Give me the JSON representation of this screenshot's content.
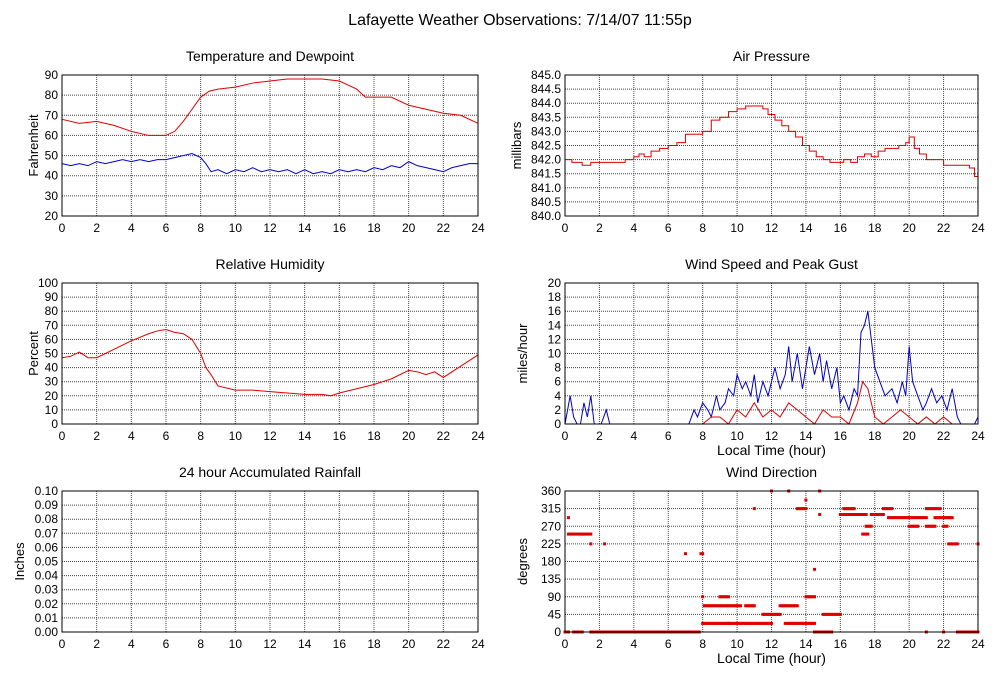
{
  "page": {
    "title": "Lafayette Weather Observations: 7/14/07 11:55p",
    "colors": {
      "red": "#dd0000",
      "blue": "#0000cc",
      "grid": "#444444",
      "frame": "#000000"
    }
  },
  "chart_data": [
    {
      "id": "temp",
      "type": "line",
      "title": "Temperature and Dewpoint",
      "xlabel": "",
      "ylabel": "Fahrenheit",
      "xlim": [
        0,
        24
      ],
      "ylim": [
        20,
        90
      ],
      "xticks": [
        0,
        2,
        4,
        6,
        8,
        10,
        12,
        14,
        16,
        18,
        20,
        22,
        24
      ],
      "yticks": [
        20,
        30,
        40,
        50,
        60,
        70,
        80,
        90
      ],
      "grid": true,
      "series": [
        {
          "color": "#dd0000",
          "step": false,
          "x": [
            0,
            1,
            2,
            3,
            4,
            5,
            5.5,
            6,
            6.5,
            7,
            7.5,
            8,
            8.5,
            9,
            10,
            11,
            12,
            13,
            14,
            15,
            16,
            16.5,
            17,
            17.5,
            18,
            19,
            20,
            21,
            22,
            23,
            24
          ],
          "y": [
            68,
            66,
            67,
            65,
            62,
            60,
            60,
            60,
            62,
            67,
            73,
            79,
            82,
            83,
            84,
            86,
            87,
            88,
            88,
            88,
            87,
            85,
            83,
            79,
            79,
            79,
            75,
            73,
            71,
            70,
            66
          ]
        },
        {
          "color": "#0000cc",
          "step": false,
          "x": [
            0,
            0.5,
            1,
            1.5,
            2,
            2.5,
            3,
            3.5,
            4,
            4.5,
            5,
            5.5,
            6,
            6.5,
            7,
            7.5,
            8,
            8.3,
            8.6,
            9,
            9.5,
            10,
            10.5,
            11,
            11.5,
            12,
            12.5,
            13,
            13.5,
            14,
            14.5,
            15,
            15.5,
            16,
            16.5,
            17,
            17.5,
            18,
            18.5,
            19,
            19.5,
            20,
            20.5,
            21,
            21.5,
            22,
            22.5,
            23,
            23.5,
            24
          ],
          "y": [
            46,
            45,
            46,
            45,
            47,
            46,
            47,
            48,
            47,
            48,
            47,
            48,
            48,
            49,
            50,
            51,
            49,
            46,
            42,
            43,
            41,
            43,
            42,
            44,
            42,
            43,
            42,
            43,
            41,
            43,
            41,
            42,
            41,
            43,
            42,
            43,
            42,
            44,
            43,
            45,
            44,
            47,
            45,
            44,
            43,
            42,
            44,
            45,
            46,
            46
          ]
        }
      ]
    },
    {
      "id": "pressure",
      "type": "line",
      "title": "Air Pressure",
      "xlabel": "",
      "ylabel": "millibars",
      "xlim": [
        0,
        24
      ],
      "ylim": [
        840.0,
        845.0
      ],
      "xticks": [
        0,
        2,
        4,
        6,
        8,
        10,
        12,
        14,
        16,
        18,
        20,
        22,
        24
      ],
      "yticks": [
        "840.0",
        "840.5",
        "841.0",
        "841.5",
        "842.0",
        "842.5",
        "843.0",
        "843.5",
        "844.0",
        "844.5",
        "845.0"
      ],
      "grid": true,
      "series": [
        {
          "color": "#dd0000",
          "step": true,
          "x": [
            0,
            0.4,
            1,
            1.5,
            2,
            2.5,
            3,
            3.5,
            4,
            4.3,
            4.6,
            5,
            5.5,
            6,
            6.5,
            7,
            7.5,
            8,
            8.5,
            9,
            9.5,
            10,
            10.5,
            11,
            11.5,
            11.8,
            12.2,
            12.6,
            13,
            13.4,
            13.8,
            14.2,
            14.6,
            15,
            15.4,
            15.8,
            16.2,
            16.6,
            17,
            17.4,
            17.8,
            18.2,
            18.6,
            19,
            19.4,
            19.8,
            20,
            20.3,
            20.6,
            21,
            21.5,
            22,
            22.5,
            23,
            23.5,
            23.8,
            24
          ],
          "y": [
            842.0,
            841.9,
            841.8,
            841.9,
            841.9,
            841.9,
            841.9,
            842.0,
            842.1,
            842.2,
            842.1,
            842.3,
            842.4,
            842.5,
            842.6,
            842.9,
            842.9,
            843.0,
            843.4,
            843.5,
            843.7,
            843.8,
            843.9,
            843.9,
            843.8,
            843.6,
            843.4,
            843.2,
            843.0,
            842.8,
            842.5,
            842.3,
            842.1,
            842.0,
            841.9,
            841.9,
            842.0,
            841.9,
            842.1,
            842.2,
            842.1,
            842.3,
            842.4,
            842.4,
            842.5,
            842.6,
            842.8,
            842.4,
            842.2,
            842.0,
            842.0,
            841.8,
            841.8,
            841.8,
            841.7,
            841.4,
            841.4
          ]
        }
      ]
    },
    {
      "id": "humidity",
      "type": "line",
      "title": "Relative Humidity",
      "xlabel": "",
      "ylabel": "Percent",
      "xlim": [
        0,
        24
      ],
      "ylim": [
        0,
        100
      ],
      "xticks": [
        0,
        2,
        4,
        6,
        8,
        10,
        12,
        14,
        16,
        18,
        20,
        22,
        24
      ],
      "yticks": [
        0,
        10,
        20,
        30,
        40,
        50,
        60,
        70,
        80,
        90,
        100
      ],
      "grid": true,
      "series": [
        {
          "color": "#dd0000",
          "step": false,
          "x": [
            0,
            0.5,
            1,
            1.5,
            2,
            3,
            4,
            5,
            5.5,
            6,
            6.5,
            7,
            7.5,
            8,
            8.3,
            8.6,
            9,
            10,
            11,
            12,
            13,
            14,
            15,
            15.5,
            16,
            17,
            18,
            19,
            20,
            20.5,
            21,
            21.5,
            22,
            23,
            24
          ],
          "y": [
            47,
            48,
            51,
            47,
            47,
            53,
            59,
            64,
            66,
            67,
            65,
            64,
            60,
            50,
            40,
            35,
            27,
            24,
            24,
            23,
            22,
            21,
            21,
            20,
            22,
            25,
            28,
            32,
            38,
            37,
            35,
            37,
            33,
            41,
            49
          ]
        }
      ]
    },
    {
      "id": "wind",
      "type": "line",
      "title": "Wind Speed and Peak Gust",
      "xlabel": "Local Time (hour)",
      "ylabel": "miles/hour",
      "xlim": [
        0,
        24
      ],
      "ylim": [
        0,
        20
      ],
      "xticks": [
        0,
        2,
        4,
        6,
        8,
        10,
        12,
        14,
        16,
        18,
        20,
        22,
        24
      ],
      "yticks": [
        0,
        2,
        4,
        6,
        8,
        10,
        12,
        14,
        16,
        18,
        20
      ],
      "grid": true,
      "series": [
        {
          "color": "#0000cc",
          "step": false,
          "x": [
            0,
            0.3,
            0.5,
            0.7,
            0.9,
            1.1,
            1.3,
            1.5,
            1.7,
            1.9,
            2.1,
            2.4,
            2.6,
            7.2,
            7.5,
            7.7,
            8,
            8.3,
            8.5,
            8.8,
            9,
            9.3,
            9.5,
            9.8,
            10,
            10.3,
            10.5,
            10.8,
            11,
            11.2,
            11.5,
            11.8,
            12,
            12.2,
            12.5,
            12.8,
            13,
            13.2,
            13.5,
            13.8,
            14,
            14.2,
            14.5,
            14.8,
            15,
            15.2,
            15.5,
            15.8,
            16,
            16.2,
            16.5,
            16.8,
            17,
            17.2,
            17.4,
            17.6,
            17.8,
            18,
            18.3,
            18.6,
            19,
            19.3,
            19.6,
            19.8,
            20,
            20.2,
            20.5,
            20.8,
            21,
            21.3,
            21.6,
            21.9,
            22.2,
            22.5,
            22.8,
            23,
            23.8,
            24
          ],
          "y": [
            0,
            4,
            1,
            0,
            0,
            3,
            1,
            4,
            0,
            0,
            0,
            2,
            0,
            0,
            2,
            1,
            3,
            2,
            1,
            4,
            2,
            3,
            5,
            4,
            7,
            5,
            6,
            4,
            7,
            3,
            6,
            4,
            6,
            8,
            5,
            7,
            11,
            6,
            10,
            5,
            8,
            11,
            7,
            10,
            6,
            9,
            5,
            8,
            3,
            4,
            2,
            5,
            4,
            13,
            14,
            16,
            12,
            8,
            6,
            4,
            5,
            3,
            6,
            4,
            11,
            6,
            4,
            2,
            3,
            5,
            3,
            4,
            2,
            5,
            1,
            0,
            0,
            1
          ]
        },
        {
          "color": "#dd0000",
          "step": false,
          "x": [
            0,
            8,
            8.5,
            9,
            9.5,
            10,
            10.5,
            11,
            11.5,
            12,
            12.5,
            13,
            13.5,
            14,
            14.5,
            15,
            15.5,
            16,
            16.5,
            17,
            17.3,
            17.6,
            18,
            18.5,
            19,
            19.5,
            20,
            20.5,
            21,
            21.5,
            22,
            22.5,
            23,
            24
          ],
          "y": [
            0,
            0,
            1,
            1,
            0,
            2,
            1,
            3,
            1,
            2,
            1,
            3,
            2,
            1,
            0,
            2,
            1,
            1,
            0,
            3,
            6,
            5,
            1,
            0,
            1,
            2,
            1,
            0,
            1,
            0,
            1,
            0,
            0,
            0
          ]
        }
      ]
    },
    {
      "id": "rain",
      "type": "line",
      "title": "24 hour Accumulated Rainfall",
      "xlabel": "",
      "ylabel": "Inches",
      "xlim": [
        0,
        24
      ],
      "ylim": [
        0.0,
        0.1
      ],
      "xticks": [
        0,
        2,
        4,
        6,
        8,
        10,
        12,
        14,
        16,
        18,
        20,
        22,
        24
      ],
      "yticks": [
        "0.00",
        "0.01",
        "0.02",
        "0.03",
        "0.04",
        "0.05",
        "0.06",
        "0.07",
        "0.08",
        "0.09",
        "0.10"
      ],
      "grid": true,
      "series": [
        {
          "color": "#dd0000",
          "step": false,
          "x": [
            0,
            24
          ],
          "y": [
            0,
            0
          ]
        }
      ]
    },
    {
      "id": "direction",
      "type": "scatter",
      "title": "Wind Direction",
      "xlabel": "Local Time (hour)",
      "ylabel": "degrees",
      "xlim": [
        0,
        24
      ],
      "ylim": [
        0,
        360
      ],
      "xticks": [
        0,
        2,
        4,
        6,
        8,
        10,
        12,
        14,
        16,
        18,
        20,
        22,
        24
      ],
      "yticks": [
        0,
        45,
        90,
        135,
        180,
        225,
        270,
        315,
        360
      ],
      "grid": true,
      "series": [
        {
          "color": "#dd0000",
          "runs": [
            [
              0.0,
              0.2,
              0
            ],
            [
              0.2,
              0.2,
              292
            ],
            [
              0.2,
              1.0,
              250
            ],
            [
              0.5,
              1.0,
              0
            ],
            [
              1.0,
              1.5,
              250
            ],
            [
              1.5,
              1.5,
              225
            ],
            [
              2.3,
              2.3,
              225
            ],
            [
              1.5,
              7.8,
              0
            ],
            [
              7.0,
              7.0,
              200
            ],
            [
              7.9,
              8.0,
              200
            ],
            [
              8.0,
              8.0,
              90
            ],
            [
              8.1,
              10.2,
              67
            ],
            [
              8.0,
              9.5,
              22
            ],
            [
              9.0,
              9.5,
              90
            ],
            [
              9.5,
              12.0,
              22
            ],
            [
              10.5,
              11.0,
              67
            ],
            [
              11.5,
              12.5,
              45
            ],
            [
              12.0,
              12.0,
              360
            ],
            [
              11.0,
              11.0,
              315
            ],
            [
              12.5,
              13.5,
              67
            ],
            [
              13.0,
              13.0,
              360
            ],
            [
              13.5,
              14.0,
              315
            ],
            [
              14.0,
              14.0,
              337
            ],
            [
              12.8,
              14.5,
              22
            ],
            [
              14.0,
              14.5,
              90
            ],
            [
              14.5,
              14.5,
              160
            ],
            [
              14.8,
              14.8,
              360
            ],
            [
              14.8,
              14.8,
              300
            ],
            [
              15.0,
              16.0,
              45
            ],
            [
              14.5,
              15.5,
              0
            ],
            [
              16.0,
              17.5,
              300
            ],
            [
              16.2,
              16.8,
              315
            ],
            [
              17.3,
              17.6,
              250
            ],
            [
              17.5,
              17.8,
              270
            ],
            [
              17.8,
              18.5,
              300
            ],
            [
              18.5,
              19.0,
              315
            ],
            [
              18.8,
              21.0,
              292
            ],
            [
              20.0,
              20.5,
              270
            ],
            [
              21.0,
              21.8,
              315
            ],
            [
              21.0,
              21.5,
              270
            ],
            [
              21.5,
              22.5,
              292
            ],
            [
              22.0,
              22.2,
              270
            ],
            [
              22.3,
              22.8,
              225
            ],
            [
              21.0,
              21.0,
              0
            ],
            [
              22.0,
              22.0,
              0
            ],
            [
              22.8,
              24.0,
              0
            ],
            [
              24.0,
              24.0,
              225
            ]
          ]
        }
      ]
    }
  ]
}
